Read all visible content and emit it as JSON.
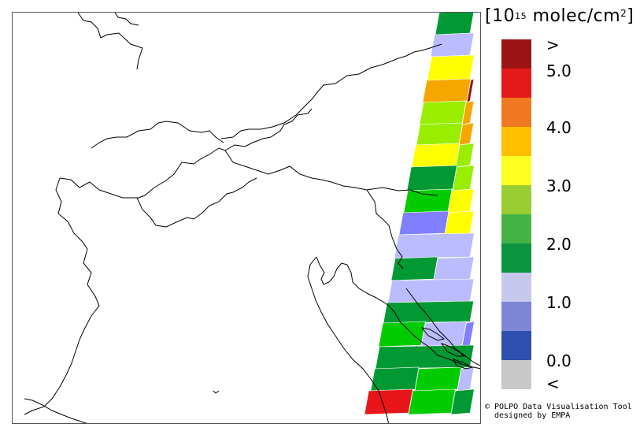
{
  "legend": {
    "unit_prefix": "[10",
    "unit_exp": "15",
    "unit_mid": " molec/cm",
    "unit_sq": "2",
    "unit_suffix": "]",
    "tick_labels": [
      ">",
      "5.0",
      "4.0",
      "3.0",
      "2.0",
      "1.0",
      "0.0",
      "<"
    ],
    "colors": [
      "#9b1414",
      "#e41a1a",
      "#f07820",
      "#ffc000",
      "#ffff22",
      "#9acd32",
      "#44b244",
      "#0b9540",
      "#c8c8ee",
      "#7e86d8",
      "#2f4fb0",
      "#c8c8c8"
    ]
  },
  "credit": {
    "line1": "© POLPO Data Visualisation Tool",
    "line2": "designed by EMPA"
  },
  "map": {
    "border_color": "#000000",
    "swath_colors": {
      "dark_red": "#9b1414",
      "red": "#e8161a",
      "orange": "#f5a700",
      "yellow": "#ffff00",
      "yellow_green": "#99ee00",
      "green": "#00cc00",
      "dark_green": "#009933",
      "light_lavender": "#bbbbff",
      "blue_violet": "#7f7fff"
    }
  }
}
